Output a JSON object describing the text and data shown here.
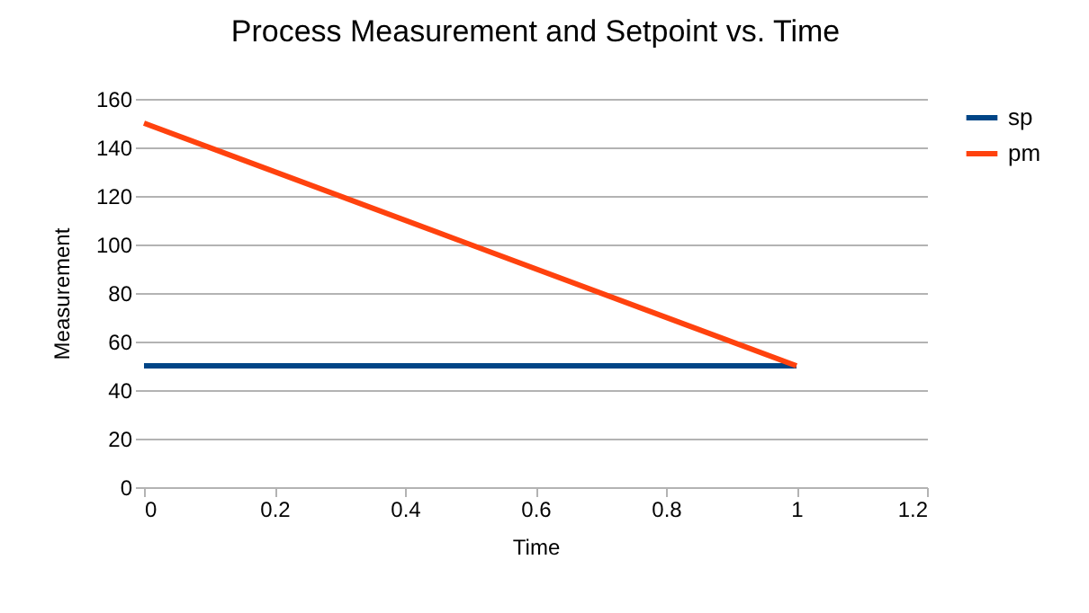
{
  "chart_data": {
    "type": "line",
    "title": "Process Measurement and Setpoint vs. Time",
    "xlabel": "Time",
    "ylabel": "Measurement",
    "x": [
      0,
      1
    ],
    "series": [
      {
        "name": "sp",
        "color": "#004586",
        "values": [
          50,
          50
        ]
      },
      {
        "name": "pm",
        "color": "#ff420e",
        "values": [
          150,
          50
        ]
      }
    ],
    "xlim": [
      0,
      1.2
    ],
    "xticks": [
      0,
      0.2,
      0.4,
      0.6,
      0.8,
      1,
      1.2
    ],
    "ylim": [
      0,
      160
    ],
    "yticks": [
      0,
      20,
      40,
      60,
      80,
      100,
      120,
      140,
      160
    ],
    "grid": "y",
    "legend": "right",
    "marker": "none",
    "line_style": "solid"
  }
}
